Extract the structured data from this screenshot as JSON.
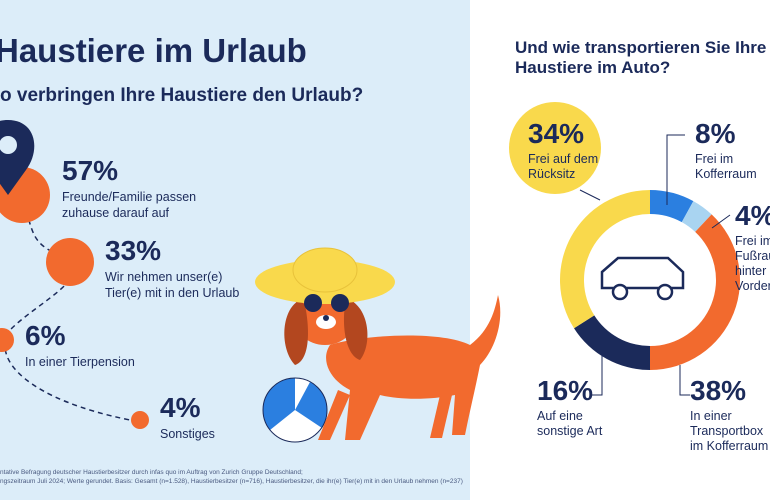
{
  "left": {
    "title": "Haustiere im Urlaub",
    "question": "o verbringen Ihre Haustiere den Urlaub?",
    "items": [
      {
        "value": "57%",
        "text": "Freunde/Familie passen\nzuhause darauf auf"
      },
      {
        "value": "33%",
        "text": "Wir nehmen unser(e)\nTier(e) mit in den Urlaub"
      },
      {
        "value": "6%",
        "text": "In einer Tierpension"
      },
      {
        "value": "4%",
        "text": "Sonstiges"
      }
    ],
    "footnote": "ntative Befragung deutscher Haustierbesitzer durch infas quo im Auftrag von Zurich Gruppe Deutschland;\nngszeitraum Juli 2024; Werte gerundet. Basis: Gesamt (n=1.528), Haustierbesitzer (n=716), Haustierbesitzer, die ihr(e) Tier(e) mit in den Urlaub nehmen (n=237)"
  },
  "chart_data": {
    "type": "donut",
    "title": "Und wie transportieren Sie Ihre\nHaustiere im Auto?",
    "categories": [
      "Frei im\nKofferraum",
      "Frei im\nFußrau\nhinter\nVorder",
      "In einer\nTransportbox\nim Kofferraum",
      "Auf eine\nsonstige Art",
      "Frei auf dem\nRücksitz"
    ],
    "values": [
      8,
      4,
      38,
      16,
      34
    ],
    "value_labels": [
      "8%",
      "4%",
      "38%",
      "16%",
      "34%"
    ],
    "colors": [
      "#2b7fe0",
      "#a9d4f1",
      "#f26a2e",
      "#1b2a5a",
      "#f9d94c"
    ]
  }
}
